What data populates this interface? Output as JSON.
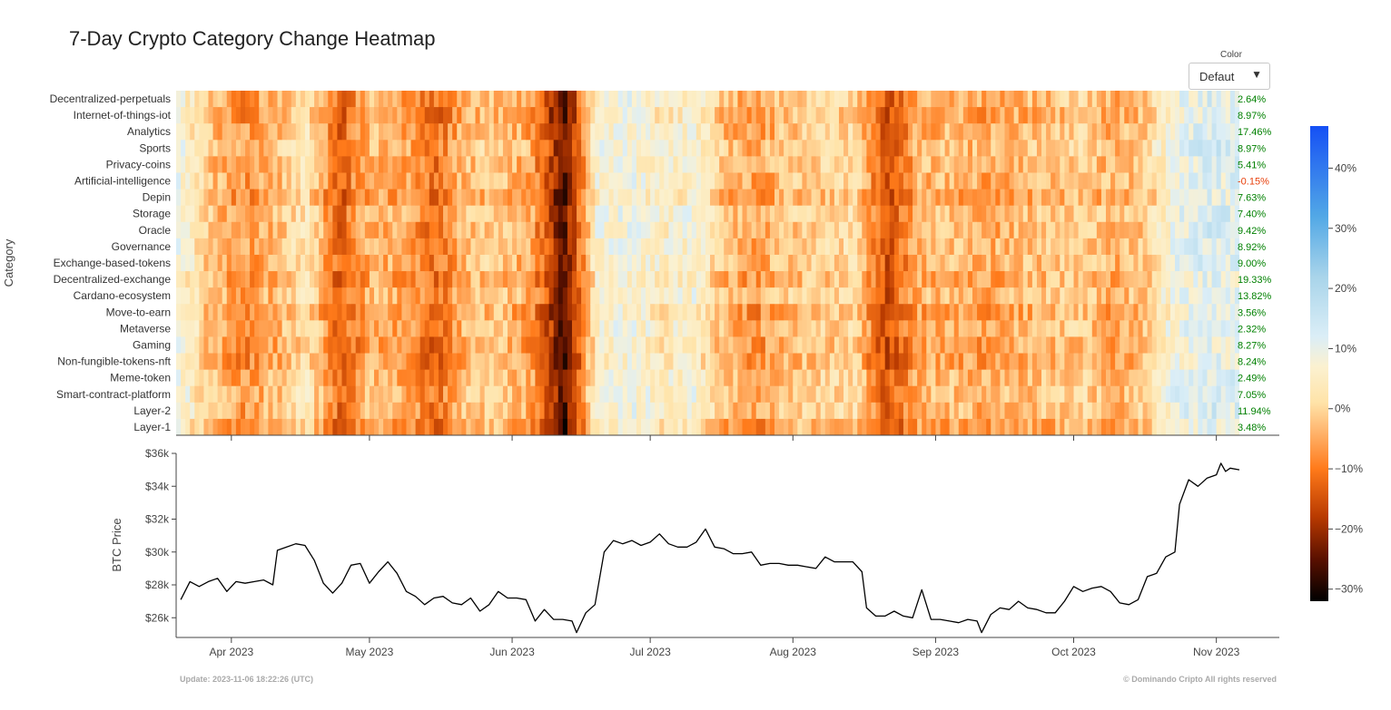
{
  "title": "7-Day Crypto Category Change Heatmap",
  "dropdown": {
    "label": "Color",
    "value": "Defaut"
  },
  "footer": {
    "update": "Update: 2023-11-06 18:22:26 (UTC)",
    "copyright": "© Dominando Cripto All rights reserved"
  },
  "chart_data": [
    {
      "type": "heatmap",
      "title": "7-Day Crypto Category Change Heatmap",
      "ylabel": "Category",
      "x_range": [
        "2023-03-20",
        "2023-11-06"
      ],
      "categories": [
        "Decentralized-perpetuals",
        "Internet-of-things-iot",
        "Analytics",
        "Sports",
        "Privacy-coins",
        "Artificial-intelligence",
        "Depin",
        "Storage",
        "Oracle",
        "Governance",
        "Exchange-based-tokens",
        "Decentralized-exchange",
        "Cardano-ecosystem",
        "Move-to-earn",
        "Metaverse",
        "Gaming",
        "Non-fungible-tokens-nft",
        "Meme-token",
        "Smart-contract-platform",
        "Layer-2",
        "Layer-1"
      ],
      "latest_change_labels": [
        "2.64%",
        "8.97%",
        "17.46%",
        "8.97%",
        "5.41%",
        "-0.15%",
        "7.63%",
        "7.40%",
        "9.42%",
        "8.92%",
        "9.00%",
        "19.33%",
        "13.82%",
        "3.56%",
        "2.32%",
        "8.27%",
        "8.24%",
        "2.49%",
        "7.05%",
        "11.94%",
        "3.48%"
      ],
      "colorscale": {
        "min": -32,
        "max": 47,
        "ticks": [
          "40%",
          "30%",
          "20%",
          "10%",
          "0%",
          "−10%",
          "−20%",
          "−30%"
        ],
        "tick_values": [
          40,
          30,
          20,
          10,
          0,
          -10,
          -20,
          -30
        ]
      },
      "regime_profile": [
        {
          "date": "2023-03-20",
          "v": 8
        },
        {
          "date": "2023-03-27",
          "v": -3
        },
        {
          "date": "2023-04-03",
          "v": -8
        },
        {
          "date": "2023-04-10",
          "v": -4
        },
        {
          "date": "2023-04-17",
          "v": 2
        },
        {
          "date": "2023-04-24",
          "v": -13
        },
        {
          "date": "2023-05-01",
          "v": -4
        },
        {
          "date": "2023-05-08",
          "v": -6
        },
        {
          "date": "2023-05-15",
          "v": -12
        },
        {
          "date": "2023-05-22",
          "v": -3
        },
        {
          "date": "2023-05-29",
          "v": -2
        },
        {
          "date": "2023-06-05",
          "v": -7
        },
        {
          "date": "2023-06-12",
          "v": -26
        },
        {
          "date": "2023-06-19",
          "v": 6
        },
        {
          "date": "2023-06-26",
          "v": 8
        },
        {
          "date": "2023-07-03",
          "v": 4
        },
        {
          "date": "2023-07-10",
          "v": 6
        },
        {
          "date": "2023-07-17",
          "v": -4
        },
        {
          "date": "2023-07-24",
          "v": -7
        },
        {
          "date": "2023-07-31",
          "v": -2
        },
        {
          "date": "2023-08-07",
          "v": -1
        },
        {
          "date": "2023-08-14",
          "v": 0
        },
        {
          "date": "2023-08-21",
          "v": -16
        },
        {
          "date": "2023-08-28",
          "v": -5
        },
        {
          "date": "2023-09-04",
          "v": -4
        },
        {
          "date": "2023-09-11",
          "v": -6
        },
        {
          "date": "2023-09-18",
          "v": -4
        },
        {
          "date": "2023-09-25",
          "v": -3
        },
        {
          "date": "2023-10-02",
          "v": -1
        },
        {
          "date": "2023-10-09",
          "v": -5
        },
        {
          "date": "2023-10-16",
          "v": -2
        },
        {
          "date": "2023-10-23",
          "v": 9
        },
        {
          "date": "2023-10-30",
          "v": 12
        },
        {
          "date": "2023-11-06",
          "v": 10
        }
      ]
    },
    {
      "type": "line",
      "ylabel": "BTC Price",
      "ylim": [
        24800,
        36000
      ],
      "y_ticks": [
        "$26k",
        "$28k",
        "$30k",
        "$32k",
        "$34k",
        "$36k"
      ],
      "y_tick_values": [
        26000,
        28000,
        30000,
        32000,
        34000,
        36000
      ],
      "x_ticks": [
        "Apr 2023",
        "May 2023",
        "Jun 2023",
        "Jul 2023",
        "Aug 2023",
        "Sep 2023",
        "Oct 2023",
        "Nov 2023"
      ],
      "x_tick_dates": [
        "2023-04-01",
        "2023-05-01",
        "2023-06-01",
        "2023-07-01",
        "2023-08-01",
        "2023-09-01",
        "2023-10-01",
        "2023-11-01"
      ],
      "x_range": [
        "2023-03-20",
        "2023-11-06"
      ],
      "series": [
        {
          "values": [
            {
              "x": "2023-03-21",
              "y": 27100
            },
            {
              "x": "2023-03-23",
              "y": 28200
            },
            {
              "x": "2023-03-25",
              "y": 27900
            },
            {
              "x": "2023-03-27",
              "y": 28200
            },
            {
              "x": "2023-03-29",
              "y": 28400
            },
            {
              "x": "2023-03-31",
              "y": 27600
            },
            {
              "x": "2023-04-02",
              "y": 28200
            },
            {
              "x": "2023-04-04",
              "y": 28100
            },
            {
              "x": "2023-04-06",
              "y": 28200
            },
            {
              "x": "2023-04-08",
              "y": 28300
            },
            {
              "x": "2023-04-10",
              "y": 28000
            },
            {
              "x": "2023-04-11",
              "y": 30100
            },
            {
              "x": "2023-04-13",
              "y": 30300
            },
            {
              "x": "2023-04-15",
              "y": 30500
            },
            {
              "x": "2023-04-17",
              "y": 30400
            },
            {
              "x": "2023-04-19",
              "y": 29500
            },
            {
              "x": "2023-04-21",
              "y": 28100
            },
            {
              "x": "2023-04-23",
              "y": 27500
            },
            {
              "x": "2023-04-25",
              "y": 28100
            },
            {
              "x": "2023-04-27",
              "y": 29200
            },
            {
              "x": "2023-04-29",
              "y": 29300
            },
            {
              "x": "2023-05-01",
              "y": 28100
            },
            {
              "x": "2023-05-03",
              "y": 28800
            },
            {
              "x": "2023-05-05",
              "y": 29400
            },
            {
              "x": "2023-05-07",
              "y": 28700
            },
            {
              "x": "2023-05-09",
              "y": 27600
            },
            {
              "x": "2023-05-11",
              "y": 27300
            },
            {
              "x": "2023-05-13",
              "y": 26800
            },
            {
              "x": "2023-05-15",
              "y": 27200
            },
            {
              "x": "2023-05-17",
              "y": 27300
            },
            {
              "x": "2023-05-19",
              "y": 26900
            },
            {
              "x": "2023-05-21",
              "y": 26800
            },
            {
              "x": "2023-05-23",
              "y": 27200
            },
            {
              "x": "2023-05-25",
              "y": 26400
            },
            {
              "x": "2023-05-27",
              "y": 26800
            },
            {
              "x": "2023-05-29",
              "y": 27600
            },
            {
              "x": "2023-05-31",
              "y": 27200
            },
            {
              "x": "2023-06-02",
              "y": 27200
            },
            {
              "x": "2023-06-04",
              "y": 27100
            },
            {
              "x": "2023-06-06",
              "y": 25800
            },
            {
              "x": "2023-06-08",
              "y": 26500
            },
            {
              "x": "2023-06-10",
              "y": 25900
            },
            {
              "x": "2023-06-12",
              "y": 25900
            },
            {
              "x": "2023-06-14",
              "y": 25800
            },
            {
              "x": "2023-06-15",
              "y": 25100
            },
            {
              "x": "2023-06-17",
              "y": 26300
            },
            {
              "x": "2023-06-19",
              "y": 26800
            },
            {
              "x": "2023-06-21",
              "y": 30000
            },
            {
              "x": "2023-06-23",
              "y": 30700
            },
            {
              "x": "2023-06-25",
              "y": 30500
            },
            {
              "x": "2023-06-27",
              "y": 30700
            },
            {
              "x": "2023-06-29",
              "y": 30400
            },
            {
              "x": "2023-07-01",
              "y": 30600
            },
            {
              "x": "2023-07-03",
              "y": 31100
            },
            {
              "x": "2023-07-05",
              "y": 30500
            },
            {
              "x": "2023-07-07",
              "y": 30300
            },
            {
              "x": "2023-07-09",
              "y": 30300
            },
            {
              "x": "2023-07-11",
              "y": 30600
            },
            {
              "x": "2023-07-13",
              "y": 31400
            },
            {
              "x": "2023-07-15",
              "y": 30300
            },
            {
              "x": "2023-07-17",
              "y": 30200
            },
            {
              "x": "2023-07-19",
              "y": 29900
            },
            {
              "x": "2023-07-21",
              "y": 29900
            },
            {
              "x": "2023-07-23",
              "y": 30000
            },
            {
              "x": "2023-07-25",
              "y": 29200
            },
            {
              "x": "2023-07-27",
              "y": 29300
            },
            {
              "x": "2023-07-29",
              "y": 29300
            },
            {
              "x": "2023-07-31",
              "y": 29200
            },
            {
              "x": "2023-08-02",
              "y": 29200
            },
            {
              "x": "2023-08-04",
              "y": 29100
            },
            {
              "x": "2023-08-06",
              "y": 29000
            },
            {
              "x": "2023-08-08",
              "y": 29700
            },
            {
              "x": "2023-08-10",
              "y": 29400
            },
            {
              "x": "2023-08-12",
              "y": 29400
            },
            {
              "x": "2023-08-14",
              "y": 29400
            },
            {
              "x": "2023-08-16",
              "y": 28800
            },
            {
              "x": "2023-08-17",
              "y": 26600
            },
            {
              "x": "2023-08-19",
              "y": 26100
            },
            {
              "x": "2023-08-21",
              "y": 26100
            },
            {
              "x": "2023-08-23",
              "y": 26400
            },
            {
              "x": "2023-08-25",
              "y": 26100
            },
            {
              "x": "2023-08-27",
              "y": 26000
            },
            {
              "x": "2023-08-29",
              "y": 27700
            },
            {
              "x": "2023-08-31",
              "y": 25900
            },
            {
              "x": "2023-09-02",
              "y": 25900
            },
            {
              "x": "2023-09-04",
              "y": 25800
            },
            {
              "x": "2023-09-06",
              "y": 25700
            },
            {
              "x": "2023-09-08",
              "y": 25900
            },
            {
              "x": "2023-09-10",
              "y": 25800
            },
            {
              "x": "2023-09-11",
              "y": 25100
            },
            {
              "x": "2023-09-13",
              "y": 26200
            },
            {
              "x": "2023-09-15",
              "y": 26600
            },
            {
              "x": "2023-09-17",
              "y": 26500
            },
            {
              "x": "2023-09-19",
              "y": 27000
            },
            {
              "x": "2023-09-21",
              "y": 26600
            },
            {
              "x": "2023-09-23",
              "y": 26500
            },
            {
              "x": "2023-09-25",
              "y": 26300
            },
            {
              "x": "2023-09-27",
              "y": 26300
            },
            {
              "x": "2023-09-29",
              "y": 27000
            },
            {
              "x": "2023-10-01",
              "y": 27900
            },
            {
              "x": "2023-10-03",
              "y": 27600
            },
            {
              "x": "2023-10-05",
              "y": 27800
            },
            {
              "x": "2023-10-07",
              "y": 27900
            },
            {
              "x": "2023-10-09",
              "y": 27600
            },
            {
              "x": "2023-10-11",
              "y": 26900
            },
            {
              "x": "2023-10-13",
              "y": 26800
            },
            {
              "x": "2023-10-15",
              "y": 27100
            },
            {
              "x": "2023-10-17",
              "y": 28500
            },
            {
              "x": "2023-10-19",
              "y": 28700
            },
            {
              "x": "2023-10-21",
              "y": 29700
            },
            {
              "x": "2023-10-23",
              "y": 30000
            },
            {
              "x": "2023-10-24",
              "y": 32900
            },
            {
              "x": "2023-10-26",
              "y": 34400
            },
            {
              "x": "2023-10-28",
              "y": 34000
            },
            {
              "x": "2023-10-30",
              "y": 34500
            },
            {
              "x": "2023-11-01",
              "y": 34700
            },
            {
              "x": "2023-11-02",
              "y": 35400
            },
            {
              "x": "2023-11-03",
              "y": 34900
            },
            {
              "x": "2023-11-04",
              "y": 35100
            },
            {
              "x": "2023-11-06",
              "y": 35000
            }
          ]
        }
      ]
    }
  ],
  "colors": {
    "line": "#000000",
    "positive_label": "#008000",
    "negative_label": "#e8400c"
  }
}
